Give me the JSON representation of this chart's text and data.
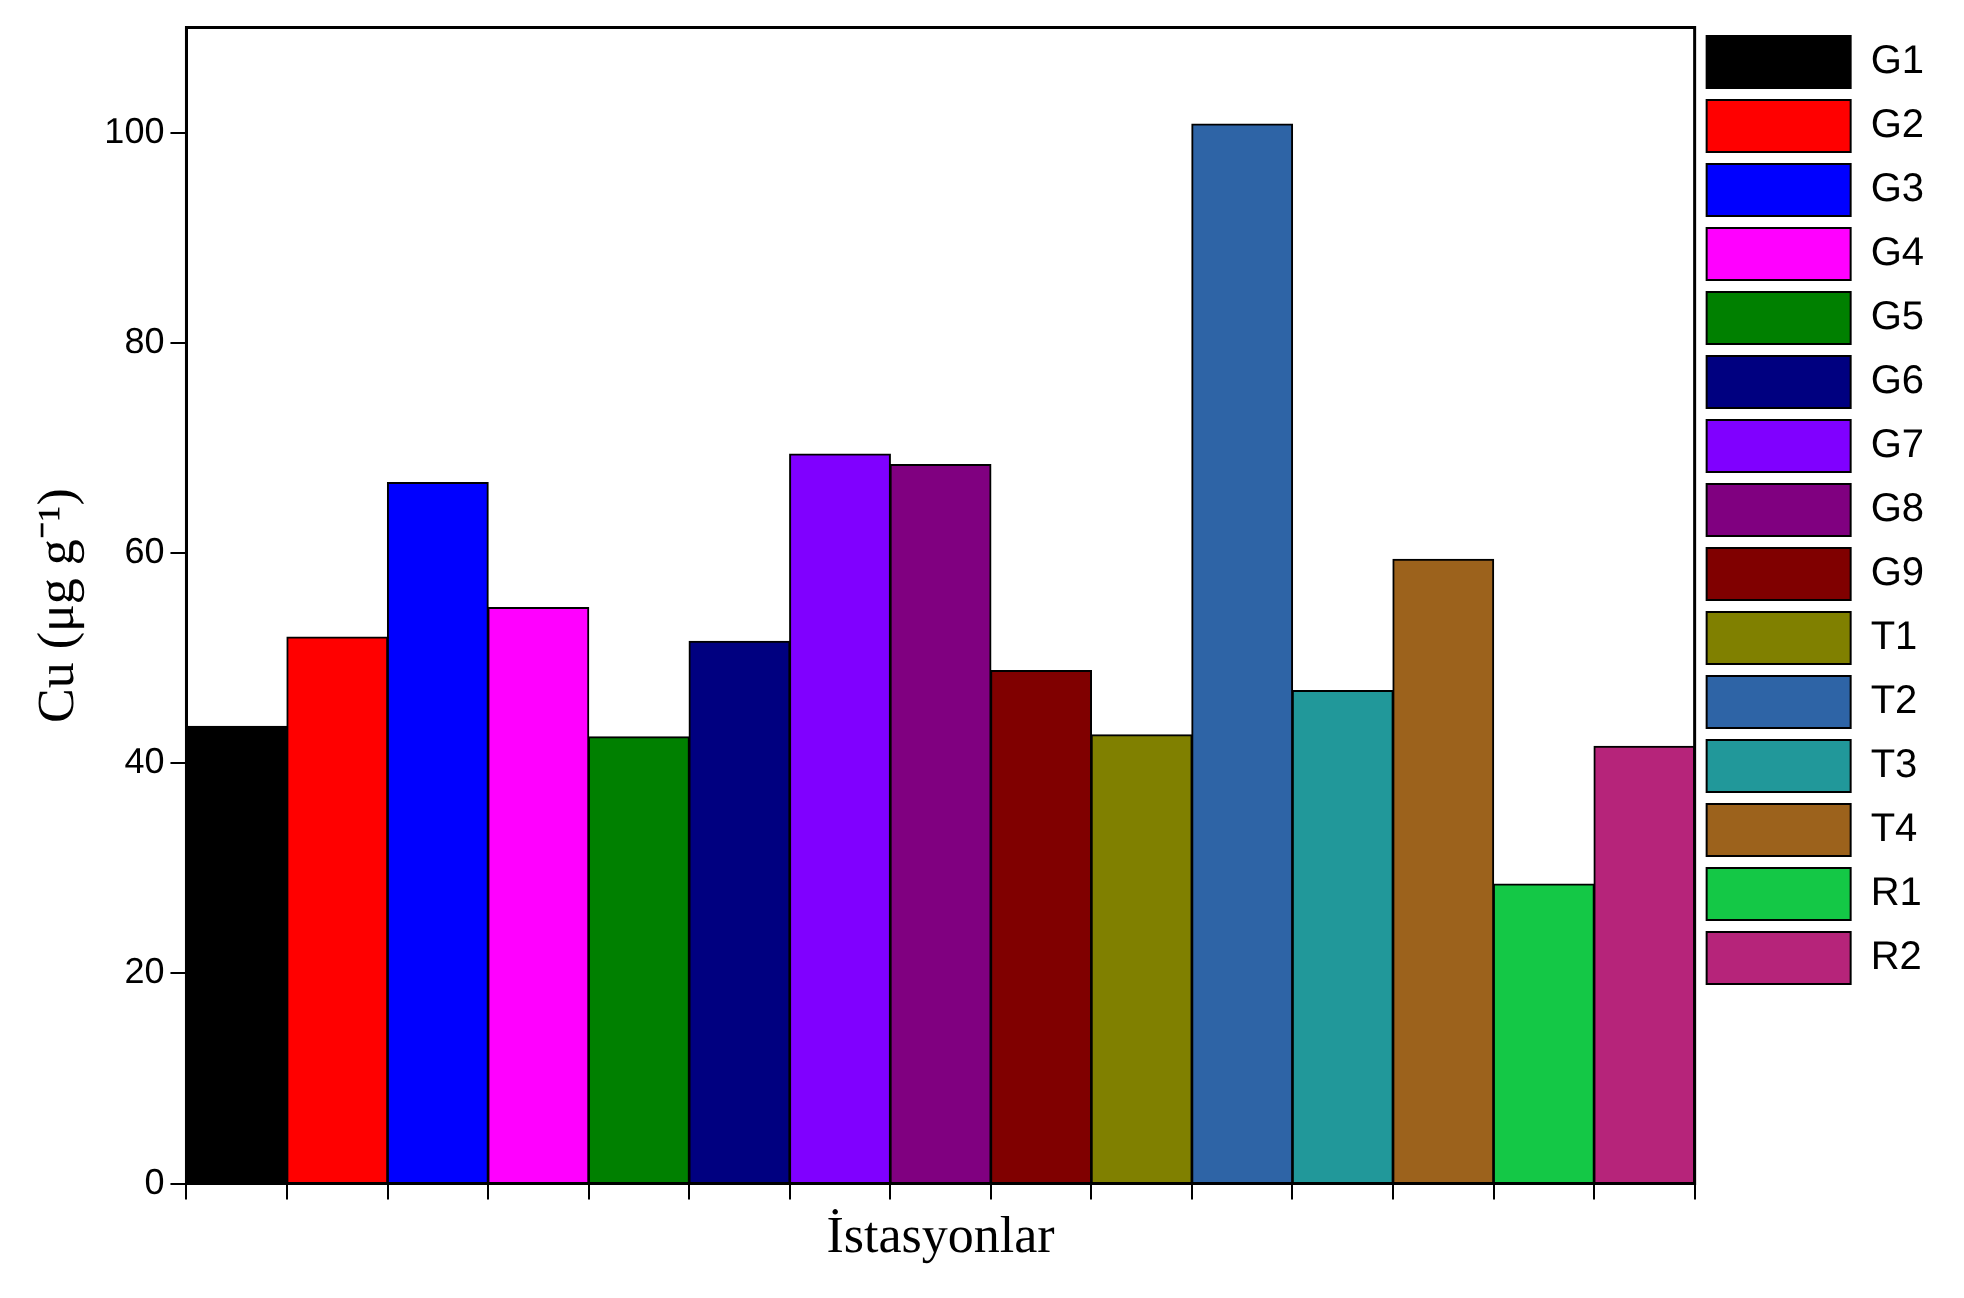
{
  "chart_data": {
    "type": "bar",
    "xlabel": "İstasyonlar",
    "ylabel": "Cu (μg g⁻¹)",
    "stacked": true,
    "categories": [
      null,
      null,
      null,
      null,
      null,
      null,
      null,
      null,
      null,
      null,
      null,
      null,
      null,
      null,
      null
    ],
    "series": [
      {
        "name": "G1",
        "color": "#000000",
        "values": [
          43.5,
          null,
          null,
          null,
          null,
          null,
          null,
          null,
          null,
          null,
          null,
          null,
          null,
          null,
          null
        ]
      },
      {
        "name": "G2",
        "color": "#ff0000",
        "values": [
          null,
          52,
          null,
          null,
          null,
          null,
          null,
          null,
          null,
          null,
          null,
          null,
          null,
          null,
          null
        ]
      },
      {
        "name": "G3",
        "color": "#0000ff",
        "values": [
          null,
          null,
          66.7,
          null,
          null,
          null,
          null,
          null,
          null,
          null,
          null,
          null,
          null,
          null,
          null
        ]
      },
      {
        "name": "G4",
        "color": "#ff00ff",
        "values": [
          null,
          null,
          null,
          54.8,
          null,
          null,
          null,
          null,
          null,
          null,
          null,
          null,
          null,
          null,
          null
        ]
      },
      {
        "name": "G5",
        "color": "#008000",
        "values": [
          null,
          null,
          null,
          null,
          42.5,
          null,
          null,
          null,
          null,
          null,
          null,
          null,
          null,
          null,
          null
        ]
      },
      {
        "name": "G6",
        "color": "#000080",
        "values": [
          null,
          null,
          null,
          null,
          null,
          51.6,
          null,
          null,
          null,
          null,
          null,
          null,
          null,
          null,
          null
        ]
      },
      {
        "name": "G7",
        "color": "#8000ff",
        "values": [
          null,
          null,
          null,
          null,
          null,
          null,
          69.4,
          null,
          null,
          null,
          null,
          null,
          null,
          null,
          null
        ]
      },
      {
        "name": "G8",
        "color": "#800080",
        "values": [
          null,
          null,
          null,
          null,
          null,
          null,
          null,
          68.4,
          null,
          null,
          null,
          null,
          null,
          null,
          null
        ]
      },
      {
        "name": "G9",
        "color": "#800000",
        "values": [
          null,
          null,
          null,
          null,
          null,
          null,
          null,
          null,
          48.8,
          null,
          null,
          null,
          null,
          null,
          null
        ]
      },
      {
        "name": "T1",
        "color": "#808000",
        "values": [
          null,
          null,
          null,
          null,
          null,
          null,
          null,
          null,
          null,
          42.7,
          null,
          null,
          null,
          null,
          null
        ]
      },
      {
        "name": "T2",
        "color": "#2e64a6",
        "values": [
          null,
          null,
          null,
          null,
          null,
          null,
          null,
          null,
          null,
          null,
          100.8,
          null,
          null,
          null,
          null
        ]
      },
      {
        "name": "T3",
        "color": "#21989a",
        "values": [
          null,
          null,
          null,
          null,
          null,
          null,
          null,
          null,
          null,
          null,
          null,
          46.9,
          null,
          null,
          null
        ]
      },
      {
        "name": "T4",
        "color": "#9c621c",
        "values": [
          null,
          null,
          null,
          null,
          null,
          null,
          null,
          null,
          null,
          null,
          null,
          null,
          59.4,
          null,
          null
        ]
      },
      {
        "name": "R1",
        "color": "#14c846",
        "values": [
          null,
          null,
          null,
          null,
          null,
          null,
          null,
          null,
          null,
          null,
          null,
          null,
          null,
          28.5,
          null
        ]
      },
      {
        "name": "R2",
        "color": "#b6247a",
        "values": [
          null,
          null,
          null,
          null,
          null,
          null,
          null,
          null,
          null,
          null,
          null,
          null,
          null,
          null,
          41.6
        ]
      }
    ],
    "ylim": [
      0,
      110
    ],
    "yticks": [
      0,
      20,
      40,
      60,
      80,
      100
    ],
    "grid": false,
    "legend": "right",
    "tick_labels": "y"
  }
}
